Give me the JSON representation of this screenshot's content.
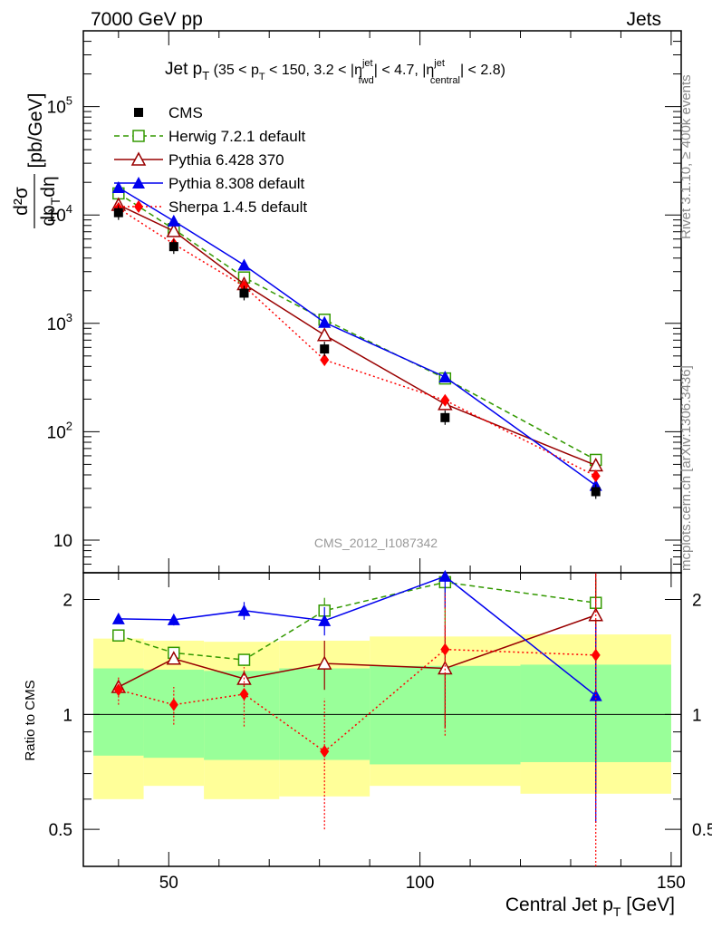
{
  "header": {
    "left": "7000 GeV pp",
    "right": "Jets"
  },
  "side_labels": {
    "upper": "Rivet 3.1.10, ≥ 400k events",
    "lower": "mcplots.cern.ch [arXiv:1306.3436]"
  },
  "chart_data": {
    "type": "line",
    "title": "Jet pT (35 < pT < 150, 3.2 < |ηfwd^jet| < 4.7, |ηcentral^jet| < 2.8)",
    "title_parts": {
      "main": "Jet p",
      "sub_T": "T",
      "range_a": "(35 < p",
      "range_b": " < 150, 3.2 < |η",
      "sup_jet": "jet",
      "sub_fwd": "fwd",
      "range_c": "| < 4.7, |η",
      "sub_central": "central",
      "range_d": "| < 2.8)"
    },
    "analysis_id": "CMS_2012_I1087342",
    "xlabel": "Central Jet p",
    "xlabel_sub": "T",
    "xlabel_unit": " [GeV]",
    "ylabel_parts": {
      "d2": "d²σ",
      "den": "dp",
      "den_sub": "T",
      "den_tail": "dη",
      "unit": "[pb/GeV]"
    },
    "ratio_ylabel": "Ratio to CMS",
    "x_range": [
      33,
      152
    ],
    "y_range_log": [
      5,
      500000
    ],
    "ratio_range": [
      0.4,
      2.35
    ],
    "x_ticks": [
      "50",
      "100",
      "150"
    ],
    "y_ticks": [
      {
        "base": "10",
        "exp": ""
      },
      {
        "base": "10",
        "exp": "2"
      },
      {
        "base": "10",
        "exp": "3"
      },
      {
        "base": "10",
        "exp": "4"
      },
      {
        "base": "10",
        "exp": "5"
      }
    ],
    "ratio_ticks": [
      "0.5",
      "1",
      "2"
    ],
    "x": [
      40,
      51,
      65,
      81,
      105,
      135
    ],
    "bin_edges": [
      35,
      45,
      57,
      72,
      90,
      120,
      150
    ],
    "cms": {
      "name": "CMS",
      "values": [
        10500,
        5100,
        1900,
        580,
        135,
        28
      ],
      "band_inner": [
        [
          0.78,
          1.32
        ],
        [
          0.77,
          1.31
        ],
        [
          0.76,
          1.3
        ],
        [
          0.76,
          1.32
        ],
        [
          0.74,
          1.34
        ],
        [
          0.75,
          1.35
        ]
      ],
      "band_outer": [
        [
          0.6,
          1.58
        ],
        [
          0.65,
          1.56
        ],
        [
          0.6,
          1.55
        ],
        [
          0.61,
          1.56
        ],
        [
          0.65,
          1.6
        ],
        [
          0.62,
          1.62
        ]
      ]
    },
    "series": [
      {
        "name": "Herwig 7.2.1 default",
        "color": "#339900",
        "dash": "6,4",
        "marker": "open-square",
        "values": [
          15800,
          7400,
          2650,
          1080,
          310,
          55
        ],
        "ratio": [
          1.61,
          1.45,
          1.39,
          1.87,
          2.22,
          1.96
        ],
        "ratio_err": [
          0.03,
          0.04,
          0.05,
          0.15,
          0.5,
          0.3
        ]
      },
      {
        "name": "Pythia 6.428 370",
        "color": "#990000",
        "dash": "",
        "marker": "open-triangle",
        "values": [
          12400,
          7100,
          2300,
          780,
          180,
          49
        ],
        "ratio": [
          1.18,
          1.4,
          1.24,
          1.36,
          1.32,
          1.82
        ],
        "ratio_err": [
          0.03,
          0.04,
          0.06,
          0.2,
          0.4,
          1.2
        ]
      },
      {
        "name": "Pythia 8.308 default",
        "color": "#0000ee",
        "dash": "",
        "marker": "filled-triangle",
        "values": [
          17900,
          8800,
          3450,
          1020,
          320,
          32
        ],
        "ratio": [
          1.78,
          1.77,
          1.87,
          1.76,
          2.3,
          1.12
        ],
        "ratio_err": [
          0.05,
          0.06,
          0.1,
          0.15,
          0.4,
          0.6
        ]
      },
      {
        "name": "Sherpa 1.4.5 default",
        "color": "#ff0000",
        "dash": "2,3",
        "marker": "filled-diamond",
        "values": [
          11500,
          5400,
          2200,
          460,
          195,
          39
        ],
        "ratio": [
          1.16,
          1.06,
          1.13,
          0.8,
          1.48,
          1.43
        ],
        "ratio_err": [
          0.1,
          0.12,
          0.2,
          0.3,
          0.6,
          1.5
        ]
      }
    ]
  }
}
